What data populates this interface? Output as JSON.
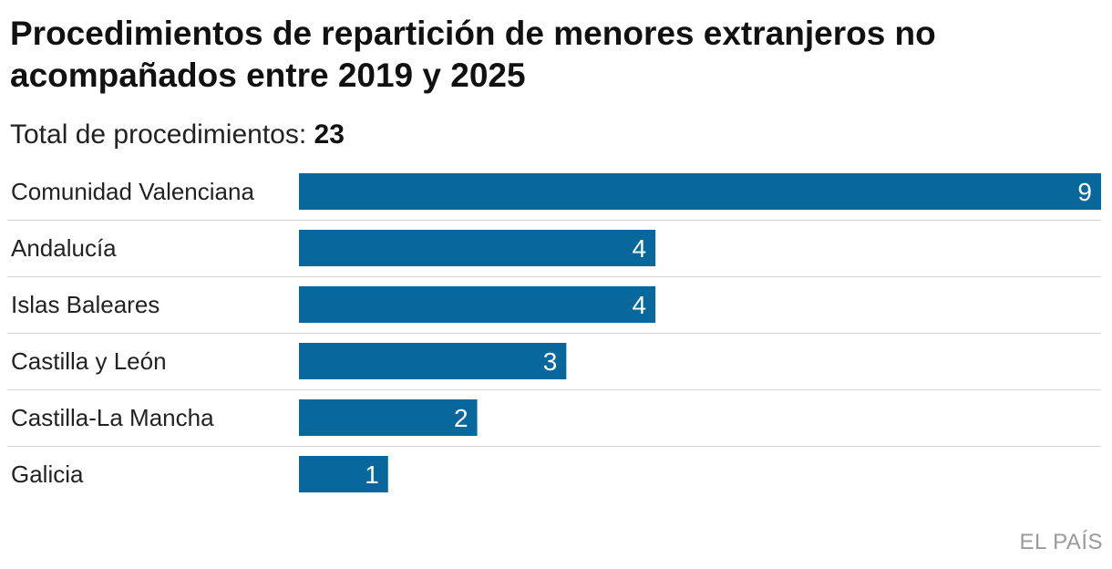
{
  "header": {
    "title": "Procedimientos de repartición de menores extranjeros no acompañados entre 2019 y 2025",
    "subtitle_label": "Total de procedimientos:",
    "subtitle_total": "23"
  },
  "chart_data": {
    "type": "bar",
    "orientation": "horizontal",
    "title": "Procedimientos de repartición de menores extranjeros no acompañados entre 2019 y 2025",
    "subtitle": "Total de procedimientos: 23",
    "categories": [
      "Comunidad Valenciana",
      "Andalucía",
      "Islas Baleares",
      "Castilla y León",
      "Castilla-La Mancha",
      "Galicia"
    ],
    "values": [
      9,
      4,
      4,
      3,
      2,
      1
    ],
    "xlim": [
      0,
      9
    ],
    "xlabel": "",
    "ylabel": "",
    "grid": false,
    "bar_color": "#08679b",
    "label_color": "#ffffff",
    "separator_color": "#d6d6d6"
  },
  "footer": {
    "source": "EL PAÍS"
  }
}
